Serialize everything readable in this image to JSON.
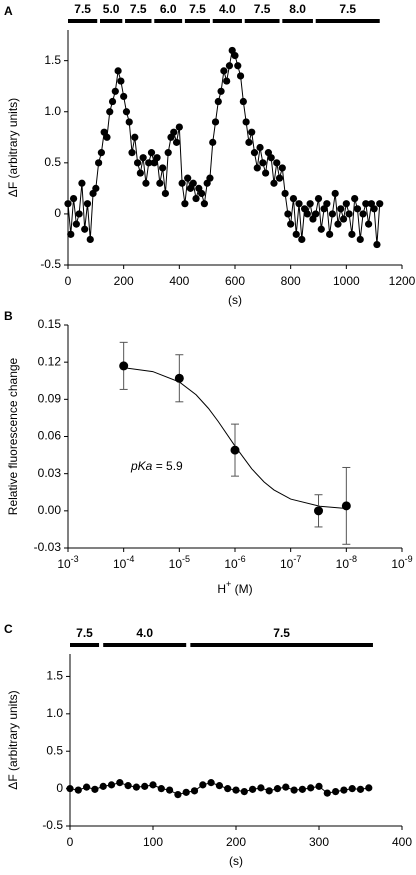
{
  "chart_data": [
    {
      "type": "line",
      "panel": "A",
      "ylabel": "ΔF (arbitrary units)",
      "xlabel": "(s)",
      "xlim": [
        0,
        1200
      ],
      "xticks": [
        0,
        200,
        400,
        600,
        800,
        1000,
        1200
      ],
      "ylim": [
        -0.5,
        1.8
      ],
      "yticks": [
        -0.5,
        0,
        0.5,
        {
          "value": 1,
          "label": "1.0"
        },
        1.5
      ],
      "color": "#000000",
      "segments": [
        {
          "label": "7.5",
          "start": 0,
          "end": 105
        },
        {
          "label": "5.0",
          "start": 115,
          "end": 195
        },
        {
          "label": "7.5",
          "start": 205,
          "end": 300
        },
        {
          "label": "6.0",
          "start": 310,
          "end": 410
        },
        {
          "label": "7.5",
          "start": 420,
          "end": 510
        },
        {
          "label": "4.0",
          "start": 520,
          "end": 625
        },
        {
          "label": "7.5",
          "start": 635,
          "end": 760
        },
        {
          "label": "8.0",
          "start": 770,
          "end": 880
        },
        {
          "label": "7.5",
          "start": 890,
          "end": 1120
        }
      ],
      "x": [
        0,
        10,
        20,
        30,
        40,
        50,
        60,
        70,
        80,
        90,
        100,
        110,
        120,
        130,
        140,
        150,
        160,
        170,
        180,
        190,
        200,
        210,
        220,
        230,
        240,
        250,
        260,
        270,
        280,
        290,
        300,
        310,
        320,
        330,
        340,
        350,
        360,
        370,
        380,
        390,
        400,
        410,
        420,
        430,
        440,
        450,
        460,
        470,
        480,
        490,
        500,
        510,
        520,
        530,
        540,
        550,
        560,
        570,
        580,
        590,
        600,
        610,
        620,
        630,
        640,
        650,
        660,
        670,
        680,
        690,
        700,
        710,
        720,
        730,
        740,
        750,
        760,
        770,
        780,
        790,
        800,
        810,
        820,
        830,
        840,
        850,
        860,
        870,
        880,
        890,
        900,
        910,
        920,
        930,
        940,
        950,
        960,
        970,
        980,
        990,
        1000,
        1010,
        1020,
        1030,
        1040,
        1050,
        1060,
        1070,
        1080,
        1090,
        1100,
        1110,
        1120
      ],
      "values": [
        0.1,
        -0.2,
        0.15,
        -0.1,
        0,
        0.3,
        -0.15,
        0.1,
        -0.25,
        0.2,
        0.25,
        0.5,
        0.6,
        0.8,
        0.75,
        1.0,
        1.1,
        1.2,
        1.4,
        1.3,
        1.15,
        1.0,
        0.9,
        0.6,
        0.75,
        0.5,
        0.4,
        0.55,
        0.3,
        0.5,
        0.6,
        0.5,
        0.55,
        0.3,
        0.45,
        0.2,
        0.6,
        0.75,
        0.8,
        0.7,
        0.85,
        0.3,
        0.1,
        0.35,
        0.25,
        0.3,
        0.15,
        0.25,
        0.2,
        0.1,
        0.3,
        0.35,
        0.7,
        0.9,
        1.1,
        1.2,
        1.4,
        1.3,
        1.45,
        1.6,
        1.55,
        1.45,
        1.35,
        1.1,
        0.9,
        0.7,
        0.8,
        0.6,
        0.45,
        0.65,
        0.5,
        0.4,
        0.6,
        0.55,
        0.3,
        0.5,
        0.35,
        0.45,
        0.2,
        0,
        -0.1,
        0.15,
        -0.2,
        0.1,
        -0.25,
        0.05,
        0,
        0.1,
        -0.05,
        0,
        0.15,
        -0.15,
        0.05,
        0.1,
        -0.2,
        0,
        0.2,
        -0.1,
        0.05,
        -0.05,
        0.1,
        0,
        -0.2,
        0.15,
        0.05,
        -0.25,
        0,
        0.1,
        -0.1,
        0.1,
        0.05,
        -0.3,
        0.1
      ]
    },
    {
      "type": "scatter",
      "panel": "B",
      "ylabel": "Relative fluorescence change",
      "xlabel": "H+ (M)",
      "xscale": "log",
      "xlim": [
        0.001,
        1e-09
      ],
      "xticks": [
        {
          "value": 0.001,
          "label": "10-3"
        },
        {
          "value": 0.0001,
          "label": "10-4"
        },
        {
          "value": 1e-05,
          "label": "10-5"
        },
        {
          "value": 1e-06,
          "label": "10-6"
        },
        {
          "value": 1e-07,
          "label": "10-7"
        },
        {
          "value": 1e-08,
          "label": "10-8"
        },
        {
          "value": 1e-09,
          "label": "10-9"
        }
      ],
      "ylim": [
        -0.03,
        0.15
      ],
      "yticks": [
        -0.03,
        {
          "value": 0,
          "label": "0.00"
        },
        0.03,
        0.06,
        0.09,
        0.12,
        0.15
      ],
      "color": "#000000",
      "annotation": "pKa = 5.9",
      "x": [
        0.0001,
        1e-05,
        1e-06,
        3.16e-08,
        1e-08
      ],
      "values": [
        0.117,
        0.107,
        0.049,
        0.0,
        0.004
      ],
      "errors": [
        0.019,
        0.019,
        0.021,
        0.013,
        0.031
      ],
      "fit": {
        "x": [
          0.0001,
          3e-05,
          1e-05,
          5e-06,
          3e-06,
          2e-06,
          1e-06,
          5e-07,
          3e-07,
          2e-07,
          1e-07,
          3e-08,
          1e-08
        ],
        "values": [
          0.1156,
          0.1124,
          0.104,
          0.0937,
          0.0827,
          0.0721,
          0.0523,
          0.0339,
          0.0233,
          0.0169,
          0.0095,
          0.0037,
          0.0019
        ]
      }
    },
    {
      "type": "line",
      "panel": "C",
      "ylabel": "ΔF (arbitrary units)",
      "xlabel": "(s)",
      "xlim": [
        0,
        400
      ],
      "xticks": [
        0,
        100,
        200,
        300,
        400
      ],
      "ylim": [
        -0.5,
        1.8
      ],
      "yticks": [
        -0.5,
        0,
        0.5,
        {
          "value": 1,
          "label": "1.0"
        },
        1.5
      ],
      "color": "#000000",
      "segments": [
        {
          "label": "7.5",
          "start": 0,
          "end": 35
        },
        {
          "label": "4.0",
          "start": 40,
          "end": 140
        },
        {
          "label": "7.5",
          "start": 145,
          "end": 365
        }
      ],
      "x": [
        0,
        10,
        20,
        30,
        40,
        50,
        60,
        70,
        80,
        90,
        100,
        110,
        120,
        130,
        140,
        150,
        160,
        170,
        180,
        190,
        200,
        210,
        220,
        230,
        240,
        250,
        260,
        270,
        280,
        290,
        300,
        310,
        320,
        330,
        340,
        350,
        360
      ],
      "values": [
        0,
        -0.02,
        0.02,
        -0.01,
        0.03,
        0.05,
        0.08,
        0.04,
        0.02,
        0.03,
        0.05,
        0,
        -0.02,
        -0.08,
        -0.05,
        -0.03,
        0.05,
        0.08,
        0.04,
        0,
        -0.02,
        -0.04,
        -0.01,
        0.01,
        -0.03,
        0,
        0.02,
        -0.02,
        -0.01,
        0.01,
        0.03,
        -0.06,
        -0.04,
        -0.02,
        0,
        -0.01,
        0.01
      ]
    }
  ]
}
